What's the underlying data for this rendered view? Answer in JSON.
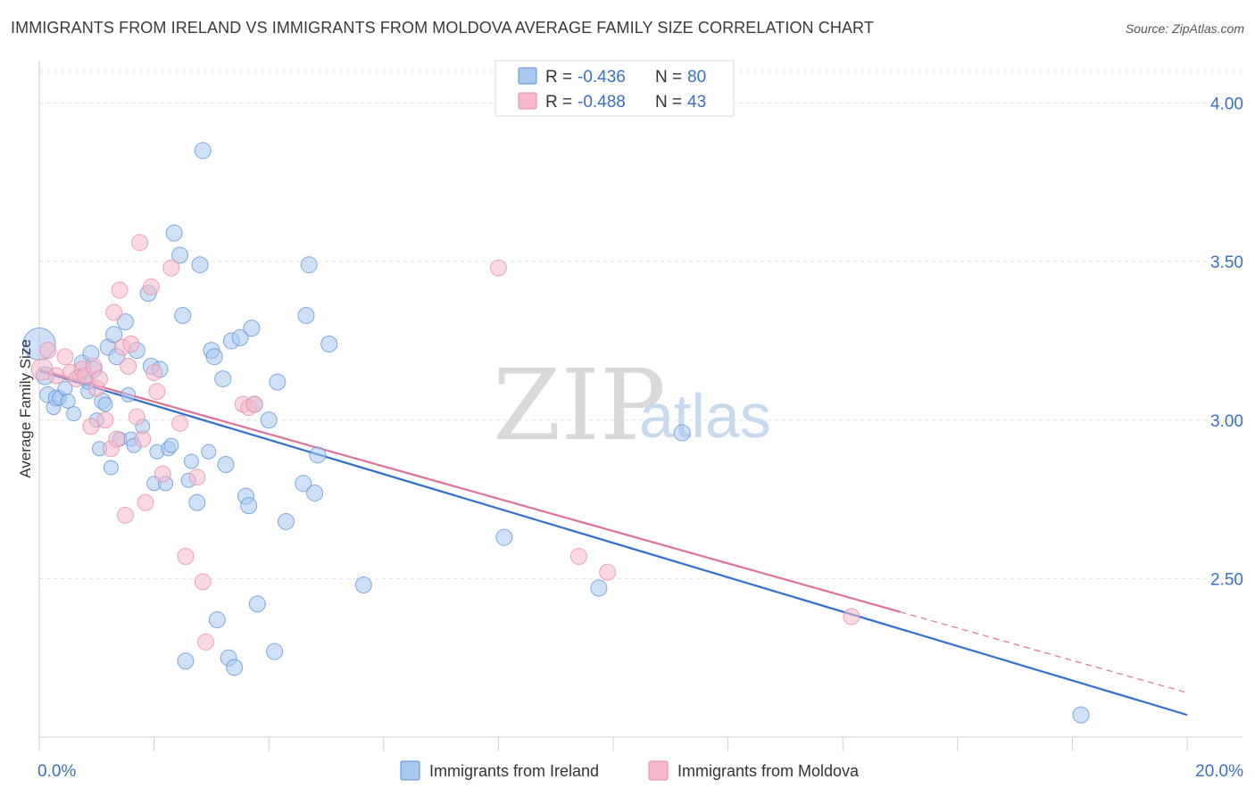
{
  "title": "IMMIGRANTS FROM IRELAND VS IMMIGRANTS FROM MOLDOVA AVERAGE FAMILY SIZE CORRELATION CHART",
  "source": "Source: ZipAtlas.com",
  "watermark": {
    "zip": "ZIP",
    "atlas": "atlas"
  },
  "chart_data": {
    "type": "scatter",
    "xlabel": "",
    "ylabel": "Average Family Size",
    "xlim": [
      0,
      20
    ],
    "ylim": [
      2.0,
      4.1
    ],
    "x_tick_labels": {
      "min": "0.0%",
      "max": "20.0%"
    },
    "y_ticks": [
      2.5,
      3.0,
      3.5,
      4.0
    ],
    "y_tick_labels": [
      "2.50",
      "3.00",
      "3.50",
      "4.00"
    ],
    "grid": "horizontal dashed",
    "legend_placement": "top-center",
    "legend": [
      {
        "r_label": "R =",
        "r": "-0.436",
        "n_label": "N =",
        "n": "80",
        "color": "#a8c8f0",
        "stroke": "#5b8fd6"
      },
      {
        "r_label": "R =",
        "r": "-0.488",
        "n_label": "N =",
        "n": "43",
        "color": "#f6b8cb",
        "stroke": "#e589a8"
      }
    ],
    "series": [
      {
        "name": "Immigrants from Ireland",
        "color": "#a8c8f0",
        "stroke": "#5b8fd6",
        "line_color": "#2f6fcf",
        "trend": {
          "x0": 0.0,
          "y0": 3.155,
          "x1": 20.0,
          "y1": 2.07,
          "solid_until": 20.0
        },
        "points": [
          [
            0.0,
            3.24,
            18
          ],
          [
            0.1,
            3.14,
            10
          ],
          [
            0.15,
            3.08,
            9
          ],
          [
            0.25,
            3.04,
            8
          ],
          [
            0.3,
            3.07,
            9
          ],
          [
            0.35,
            3.07,
            8
          ],
          [
            0.45,
            3.1,
            8
          ],
          [
            0.5,
            3.06,
            8
          ],
          [
            0.6,
            3.02,
            8
          ],
          [
            0.7,
            3.14,
            8
          ],
          [
            0.75,
            3.18,
            9
          ],
          [
            0.85,
            3.09,
            8
          ],
          [
            0.85,
            3.12,
            8
          ],
          [
            0.9,
            3.21,
            9
          ],
          [
            0.95,
            3.16,
            9
          ],
          [
            1.0,
            3.0,
            8
          ],
          [
            1.05,
            2.91,
            8
          ],
          [
            1.1,
            3.06,
            9
          ],
          [
            1.15,
            3.05,
            8
          ],
          [
            1.2,
            3.23,
            9
          ],
          [
            1.25,
            2.85,
            8
          ],
          [
            1.3,
            3.27,
            9
          ],
          [
            1.35,
            3.2,
            9
          ],
          [
            1.4,
            2.94,
            8
          ],
          [
            1.5,
            3.31,
            9
          ],
          [
            1.55,
            3.08,
            8
          ],
          [
            1.6,
            2.94,
            8
          ],
          [
            1.65,
            2.92,
            8
          ],
          [
            1.7,
            3.22,
            9
          ],
          [
            1.8,
            2.98,
            8
          ],
          [
            1.9,
            3.4,
            9
          ],
          [
            1.95,
            3.17,
            9
          ],
          [
            2.0,
            2.8,
            8
          ],
          [
            2.05,
            2.9,
            8
          ],
          [
            2.1,
            3.16,
            9
          ],
          [
            2.2,
            2.8,
            8
          ],
          [
            2.25,
            2.91,
            8
          ],
          [
            2.3,
            2.92,
            8
          ],
          [
            2.35,
            3.59,
            9
          ],
          [
            2.45,
            3.52,
            9
          ],
          [
            2.5,
            3.33,
            9
          ],
          [
            2.55,
            2.24,
            9
          ],
          [
            2.6,
            2.81,
            8
          ],
          [
            2.65,
            2.87,
            8
          ],
          [
            2.75,
            2.74,
            9
          ],
          [
            2.8,
            3.49,
            9
          ],
          [
            2.85,
            3.85,
            9
          ],
          [
            2.95,
            2.9,
            8
          ],
          [
            3.0,
            3.22,
            9
          ],
          [
            3.05,
            3.2,
            9
          ],
          [
            3.1,
            2.37,
            9
          ],
          [
            3.2,
            3.13,
            9
          ],
          [
            3.25,
            2.86,
            9
          ],
          [
            3.3,
            2.25,
            9
          ],
          [
            3.35,
            3.25,
            9
          ],
          [
            3.4,
            2.22,
            9
          ],
          [
            3.5,
            3.26,
            9
          ],
          [
            3.6,
            2.76,
            9
          ],
          [
            3.65,
            2.73,
            9
          ],
          [
            3.7,
            3.29,
            9
          ],
          [
            3.75,
            3.05,
            9
          ],
          [
            3.8,
            2.42,
            9
          ],
          [
            4.0,
            3.0,
            9
          ],
          [
            4.1,
            2.27,
            9
          ],
          [
            4.15,
            3.12,
            9
          ],
          [
            4.3,
            2.68,
            9
          ],
          [
            4.6,
            2.8,
            9
          ],
          [
            4.65,
            3.33,
            9
          ],
          [
            4.7,
            3.49,
            9
          ],
          [
            4.8,
            2.77,
            9
          ],
          [
            4.85,
            2.89,
            9
          ],
          [
            5.05,
            3.24,
            9
          ],
          [
            5.65,
            2.48,
            9
          ],
          [
            8.1,
            2.63,
            9
          ],
          [
            9.75,
            2.47,
            9
          ],
          [
            11.2,
            2.96,
            9
          ],
          [
            18.15,
            2.07,
            9
          ]
        ]
      },
      {
        "name": "Immigrants from Moldova",
        "color": "#f6b8cb",
        "stroke": "#e589a8",
        "line_color": "#e0709a",
        "trend": {
          "x0": 0.0,
          "y0": 3.16,
          "x1": 20.0,
          "y1": 2.14,
          "solid_until": 15.0
        },
        "points": [
          [
            0.05,
            3.16,
            12
          ],
          [
            0.15,
            3.22,
            9
          ],
          [
            0.3,
            3.14,
            9
          ],
          [
            0.45,
            3.2,
            9
          ],
          [
            0.55,
            3.15,
            9
          ],
          [
            0.65,
            3.13,
            9
          ],
          [
            0.75,
            3.16,
            9
          ],
          [
            0.8,
            3.14,
            9
          ],
          [
            0.9,
            2.98,
            9
          ],
          [
            0.95,
            3.17,
            9
          ],
          [
            1.0,
            3.1,
            9
          ],
          [
            1.05,
            3.13,
            9
          ],
          [
            1.15,
            3.0,
            9
          ],
          [
            1.25,
            2.91,
            9
          ],
          [
            1.3,
            3.34,
            9
          ],
          [
            1.35,
            2.94,
            9
          ],
          [
            1.4,
            3.41,
            9
          ],
          [
            1.45,
            3.23,
            9
          ],
          [
            1.5,
            2.7,
            9
          ],
          [
            1.55,
            3.17,
            9
          ],
          [
            1.6,
            3.24,
            9
          ],
          [
            1.7,
            3.01,
            9
          ],
          [
            1.75,
            3.56,
            9
          ],
          [
            1.8,
            2.94,
            9
          ],
          [
            1.85,
            2.74,
            9
          ],
          [
            1.95,
            3.42,
            9
          ],
          [
            2.0,
            3.15,
            9
          ],
          [
            2.05,
            3.09,
            9
          ],
          [
            2.15,
            2.83,
            9
          ],
          [
            2.3,
            3.48,
            9
          ],
          [
            2.45,
            2.99,
            9
          ],
          [
            2.55,
            2.57,
            9
          ],
          [
            2.75,
            2.82,
            9
          ],
          [
            2.85,
            2.49,
            9
          ],
          [
            2.9,
            2.3,
            9
          ],
          [
            3.55,
            3.05,
            9
          ],
          [
            3.65,
            3.04,
            9
          ],
          [
            3.75,
            3.05,
            9
          ],
          [
            8.0,
            3.48,
            9
          ],
          [
            9.4,
            2.57,
            9
          ],
          [
            9.9,
            2.52,
            9
          ],
          [
            14.15,
            2.38,
            9
          ]
        ]
      }
    ]
  }
}
